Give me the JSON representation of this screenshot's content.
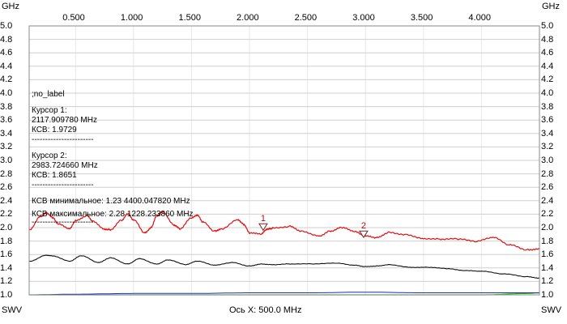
{
  "corner": {
    "top_left": "GHz",
    "top_right": "GHz",
    "bottom_left": "SWV",
    "bottom_right": "SWV",
    "bottom_center": "Ось X: 500.0 MHz"
  },
  "info": {
    "label": ";no_label",
    "cursor1_title": "Курсор 1:",
    "cursor1_freq": "2117.909780 MHz",
    "cursor1_swr": "КСВ: 1.9729",
    "sep1": "-----------------------",
    "cursor2_title": "Курсор 2:",
    "cursor2_freq": "2983.724660 MHz",
    "cursor2_swr": "КСВ: 1.8651",
    "sep2": "-----------------------",
    "swr_min": "КСВ минимальное: 1.23  4400.047820 MHz",
    "swr_max": "КСВ максимальное: 2.28  1228.233860 MHz",
    "sep3": "-----------------------"
  },
  "colors": {
    "grid": "#cfcfcf",
    "ghz_grid": "#e8e8e8",
    "series1": "#e01010",
    "series2": "#101010",
    "series3": "#1a2fb0",
    "series4": "#20c020"
  },
  "chart_data": {
    "type": "line",
    "x_unit": "GHz",
    "x_range": [
      0.1,
      4.5
    ],
    "xticks": [
      {
        "v": 0.5,
        "label": "0.500"
      },
      {
        "v": 1.0,
        "label": "1.000"
      },
      {
        "v": 1.5,
        "label": "1.500"
      },
      {
        "v": 2.0,
        "label": "2.000"
      },
      {
        "v": 2.5,
        "label": "2.500"
      },
      {
        "v": 3.0,
        "label": "3.000"
      },
      {
        "v": 3.5,
        "label": "3.500"
      },
      {
        "v": 4.0,
        "label": "4.000"
      }
    ],
    "xlabel": "Ось X: 500.0 MHz",
    "ylabel": "SWV",
    "ylim": [
      1.0,
      5.0
    ],
    "yticks": [
      "5.0",
      "4.8",
      "4.6",
      "4.4",
      "4.2",
      "4.0",
      "3.8",
      "3.6",
      "3.4",
      "3.2",
      "3.0",
      "2.8",
      "2.6",
      "2.4",
      "2.2",
      "2.0",
      "1.8",
      "1.6",
      "1.4",
      "1.2",
      "1.0"
    ],
    "grid": true,
    "series": [
      {
        "x": [
          0.1,
          0.2,
          0.25,
          0.3,
          0.35,
          0.45,
          0.5,
          0.6,
          0.65,
          0.75,
          0.8,
          0.9,
          0.95,
          1.0,
          1.1,
          1.15,
          1.2,
          1.25,
          1.35,
          1.4,
          1.5,
          1.55,
          1.6,
          1.7,
          1.75,
          1.9,
          1.95,
          2.0,
          2.1,
          2.15,
          2.2,
          2.35,
          2.45,
          2.6,
          2.7,
          2.8,
          2.9,
          3.0,
          3.1,
          3.2,
          3.35,
          3.5,
          3.65,
          3.8,
          3.95,
          4.1,
          4.25,
          4.4,
          4.5
        ],
        "y": [
          1.97,
          2.17,
          2.22,
          2.15,
          2.05,
          1.98,
          2.1,
          2.18,
          2.1,
          1.98,
          1.97,
          2.11,
          2.2,
          2.11,
          1.92,
          2.0,
          2.18,
          2.24,
          2.04,
          1.98,
          2.14,
          2.18,
          2.08,
          1.95,
          1.98,
          2.12,
          2.05,
          1.92,
          1.9,
          1.97,
          1.99,
          2.02,
          1.95,
          1.88,
          1.95,
          2.0,
          1.94,
          1.87,
          1.85,
          1.93,
          1.9,
          1.84,
          1.83,
          1.83,
          1.79,
          1.85,
          1.74,
          1.67,
          1.69
        ]
      },
      {
        "x": [
          0.1,
          0.25,
          0.3,
          0.45,
          0.55,
          0.7,
          0.8,
          0.95,
          1.05,
          1.2,
          1.3,
          1.45,
          1.55,
          1.7,
          1.85,
          2.0,
          2.1,
          2.2,
          2.35,
          2.55,
          2.75,
          2.9,
          3.0,
          3.1,
          3.2,
          3.4,
          3.55,
          3.7,
          3.85,
          4.0,
          4.2,
          4.4,
          4.5
        ],
        "y": [
          1.5,
          1.59,
          1.58,
          1.5,
          1.58,
          1.48,
          1.55,
          1.46,
          1.54,
          1.46,
          1.52,
          1.45,
          1.5,
          1.44,
          1.48,
          1.43,
          1.46,
          1.45,
          1.46,
          1.46,
          1.47,
          1.44,
          1.42,
          1.43,
          1.45,
          1.41,
          1.41,
          1.39,
          1.36,
          1.35,
          1.31,
          1.27,
          1.25
        ]
      },
      {
        "x": [
          0.1,
          0.5,
          1.0,
          1.5,
          2.0,
          2.5,
          3.0,
          3.5,
          4.0,
          4.5
        ],
        "y": [
          1.0,
          1.01,
          1.02,
          1.02,
          1.03,
          1.03,
          1.04,
          1.03,
          1.03,
          1.03
        ]
      },
      {
        "x": [
          0.1,
          1.0,
          2.0,
          3.0,
          4.0,
          4.4,
          4.5
        ],
        "y": [
          1.0,
          1.0,
          1.0,
          1.0,
          1.0,
          1.02,
          1.03
        ]
      }
    ],
    "markers": [
      {
        "label": "1",
        "x": 2.1179,
        "y": 1.9729
      },
      {
        "label": "2",
        "x": 2.9837,
        "y": 1.8651
      }
    ]
  }
}
